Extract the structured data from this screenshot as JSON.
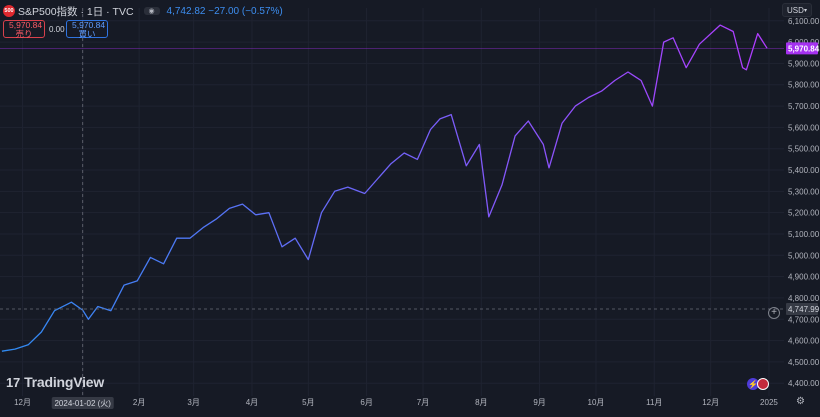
{
  "header": {
    "logo_text": "500",
    "symbol_title": "S&P500指数 · 1日 · TVC",
    "eye_icon": "eye-icon",
    "quote": "4,742.82 −27.00 (−0.57%)"
  },
  "order": {
    "sell_price": "5,970.84",
    "sell_label": "売り",
    "spread": "0.00",
    "buy_price": "5,970.84",
    "buy_label": "買い"
  },
  "currency": "USD",
  "watermark": "TradingView",
  "cursor": {
    "date_label": "2024-01-02 (火)",
    "price_label": "4,747.99"
  },
  "colors": {
    "bg": "#161a25",
    "line_start": "#2f8bf2",
    "line_end": "#b13cff",
    "last_price": "#a531f0"
  },
  "chart_data": {
    "type": "line",
    "title": "",
    "xlabel": "",
    "ylabel": "",
    "ylim": [
      4340,
      6160
    ],
    "y_ticks": [
      "4,400.00",
      "4,500.00",
      "4,600.00",
      "4,700.00",
      "4,800.00",
      "4,900.00",
      "5,000.00",
      "5,100.00",
      "5,200.00",
      "5,300.00",
      "5,400.00",
      "5,500.00",
      "5,600.00",
      "5,700.00",
      "5,800.00",
      "5,900.00",
      "6,000.00",
      "6,100.00"
    ],
    "y_tick_values": [
      4400,
      4500,
      4600,
      4700,
      4800,
      4900,
      5000,
      5100,
      5200,
      5300,
      5400,
      5500,
      5600,
      5700,
      5800,
      5900,
      6000,
      6100
    ],
    "x_ticks": [
      "12月",
      "2024-01-02 (火)",
      "2月",
      "3月",
      "4月",
      "5月",
      "6月",
      "7月",
      "8月",
      "9月",
      "10月",
      "11月",
      "12月",
      "2025"
    ],
    "x_tick_dates": [
      "2023-12-01",
      "2024-01-02",
      "2024-02-01",
      "2024-03-01",
      "2024-04-01",
      "2024-05-01",
      "2024-06-01",
      "2024-07-01",
      "2024-08-01",
      "2024-09-01",
      "2024-10-01",
      "2024-11-01",
      "2024-12-01",
      "2025-01-01"
    ],
    "last_price": 5970.84,
    "series": [
      {
        "name": "",
        "x": [
          "2023-11-20",
          "2023-11-27",
          "2023-12-04",
          "2023-12-11",
          "2023-12-18",
          "2023-12-27",
          "2024-01-02",
          "2024-01-05",
          "2024-01-10",
          "2024-01-17",
          "2024-01-24",
          "2024-01-31",
          "2024-02-07",
          "2024-02-14",
          "2024-02-21",
          "2024-02-28",
          "2024-03-06",
          "2024-03-13",
          "2024-03-20",
          "2024-03-27",
          "2024-04-03",
          "2024-04-10",
          "2024-04-17",
          "2024-04-24",
          "2024-05-01",
          "2024-05-08",
          "2024-05-15",
          "2024-05-22",
          "2024-05-31",
          "2024-06-07",
          "2024-06-14",
          "2024-06-21",
          "2024-06-28",
          "2024-07-05",
          "2024-07-10",
          "2024-07-16",
          "2024-07-24",
          "2024-07-31",
          "2024-08-05",
          "2024-08-12",
          "2024-08-19",
          "2024-08-26",
          "2024-09-03",
          "2024-09-06",
          "2024-09-13",
          "2024-09-20",
          "2024-09-27",
          "2024-10-04",
          "2024-10-11",
          "2024-10-18",
          "2024-10-25",
          "2024-10-31",
          "2024-11-06",
          "2024-11-11",
          "2024-11-18",
          "2024-11-25",
          "2024-12-06",
          "2024-12-13",
          "2024-12-18",
          "2024-12-20",
          "2024-12-26",
          "2024-12-31"
        ],
        "y": [
          4550,
          4560,
          4580,
          4640,
          4740,
          4780,
          4742.82,
          4700,
          4760,
          4740,
          4860,
          4880,
          4990,
          4960,
          5080,
          5080,
          5130,
          5170,
          5220,
          5240,
          5190,
          5200,
          5040,
          5080,
          4980,
          5200,
          5300,
          5320,
          5290,
          5360,
          5430,
          5480,
          5450,
          5590,
          5640,
          5660,
          5420,
          5520,
          5180,
          5330,
          5560,
          5630,
          5520,
          5410,
          5620,
          5700,
          5740,
          5770,
          5820,
          5860,
          5820,
          5700,
          6000,
          6020,
          5880,
          5990,
          6080,
          6050,
          5880,
          5870,
          6040,
          5970.84
        ]
      }
    ]
  }
}
